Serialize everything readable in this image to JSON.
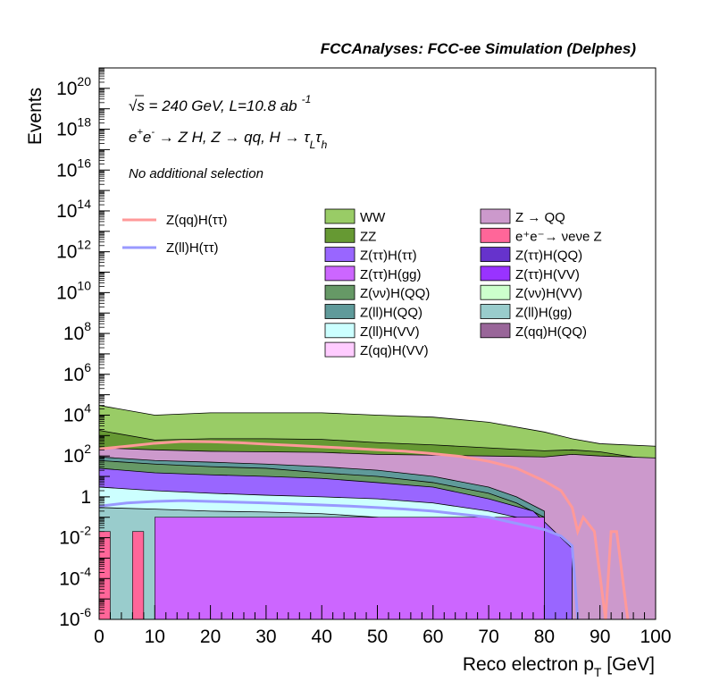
{
  "header": {
    "title": "FCCAnalyses: FCC-ee Simulation (Delphes)",
    "energy_label": "√s = 240 GeV, L=10.8 ab",
    "lumi_exponent": "-1",
    "process_parts": [
      "e",
      "+",
      "e",
      "-",
      " → Z H, Z  → qq, H  → ",
      "τ",
      "L",
      "τ",
      "h"
    ],
    "selection": "No additional selection"
  },
  "chart_data": {
    "type": "area",
    "xlabel": "Reco electron p",
    "xlabel_sub": "T",
    "xlabel_unit": " [GeV]",
    "ylabel": "Events",
    "xlim": [
      0,
      100
    ],
    "ylim": [
      1e-06,
      1e+21
    ],
    "ylog": true,
    "x_ticks": [
      "0",
      "10",
      "20",
      "30",
      "40",
      "50",
      "60",
      "70",
      "80",
      "90",
      "100"
    ],
    "y_ticks": [
      {
        "base": "10",
        "exp": "-6",
        "value": 1e-06
      },
      {
        "base": "10",
        "exp": "-4",
        "value": 0.0001
      },
      {
        "base": "10",
        "exp": "-2",
        "value": 0.01
      },
      {
        "base": "1",
        "exp": "",
        "value": 1
      },
      {
        "base": "10",
        "exp": "2",
        "value": 100.0
      },
      {
        "base": "10",
        "exp": "4",
        "value": 10000.0
      },
      {
        "base": "10",
        "exp": "6",
        "value": 1000000.0
      },
      {
        "base": "10",
        "exp": "8",
        "value": 100000000.0
      },
      {
        "base": "10",
        "exp": "10",
        "value": 10000000000.0
      },
      {
        "base": "10",
        "exp": "12",
        "value": 1000000000000.0
      },
      {
        "base": "10",
        "exp": "14",
        "value": 100000000000000.0
      },
      {
        "base": "10",
        "exp": "16",
        "value": 1e+16
      },
      {
        "base": "10",
        "exp": "18",
        "value": 1e+18
      },
      {
        "base": "10",
        "exp": "20",
        "value": 1e+20
      }
    ],
    "stacked_series": [
      {
        "name": "WW",
        "color": "#99cc66",
        "x": [
          0,
          10,
          20,
          30,
          40,
          50,
          60,
          70,
          80,
          85,
          90,
          100
        ],
        "y": [
          30000,
          10000,
          13000,
          13000,
          13000,
          10000,
          8000,
          4500,
          1500,
          700,
          400,
          300
        ]
      },
      {
        "name": "ZZ",
        "color": "#669933",
        "x": [
          0,
          10,
          20,
          30,
          40,
          50,
          60,
          70,
          80,
          85,
          90,
          100
        ],
        "y": [
          1800,
          600,
          700,
          700,
          650,
          450,
          350,
          250,
          180,
          200,
          160,
          60
        ]
      },
      {
        "name": "Z → QQ",
        "color": "#cc99cc",
        "x": [
          0,
          10,
          20,
          30,
          40,
          50,
          60,
          70,
          80,
          85,
          90,
          100
        ],
        "y": [
          250,
          200,
          170,
          160,
          150,
          120,
          110,
          100,
          90,
          120,
          100,
          80
        ]
      },
      {
        "name": "Z(ll)H(QQ)",
        "color": "#5f9a9a",
        "x": [
          0,
          10,
          20,
          30,
          40,
          50,
          60,
          70,
          75,
          80
        ],
        "y": [
          90,
          60,
          50,
          40,
          30,
          20,
          10,
          3,
          1,
          0.2
        ]
      },
      {
        "name": "Z(νν)H(QQ)",
        "color": "#669966",
        "x": [
          0,
          10,
          20,
          30,
          40,
          50,
          60,
          70,
          75,
          80
        ],
        "y": [
          60,
          40,
          30,
          25,
          15,
          10,
          5,
          1.5,
          0.5,
          0.1
        ]
      },
      {
        "name": "Z(ττ)H(ττ)",
        "color": "#9966ff",
        "x": [
          0,
          10,
          20,
          30,
          40,
          50,
          60,
          70,
          78,
          85
        ],
        "y": [
          25,
          15,
          12,
          10,
          8,
          5,
          3,
          0.8,
          0.2,
          0.003
        ]
      },
      {
        "name": "Z(ll)H(VV)",
        "color": "#ccffff",
        "x": [
          0,
          10,
          20,
          30,
          40,
          50,
          60,
          70,
          80
        ],
        "y": [
          3,
          2,
          1.5,
          1.2,
          1,
          0.8,
          0.5,
          0.2,
          0.05
        ]
      },
      {
        "name": "Z(ll)H(gg)",
        "color": "#99cccc",
        "x": [
          0,
          10,
          20,
          30,
          40,
          50,
          60,
          70,
          78
        ],
        "y": [
          0.3,
          0.25,
          0.2,
          0.18,
          0.15,
          0.1,
          0.06,
          0.02,
          0.008
        ]
      }
    ],
    "spike_bins": [
      {
        "name": "e⁺e⁻→ νeνe Z",
        "color": "#ff6699",
        "x": [
          0,
          2,
          6,
          8,
          18,
          20
        ],
        "y": [
          0.02,
          0.02,
          0.02,
          0.02,
          0.02,
          0.02
        ]
      },
      {
        "name": "Z(ττ)H(gg)",
        "color": "#cc66ff",
        "x": [
          10,
          80
        ],
        "y": [
          0.1,
          0.1
        ]
      }
    ],
    "lines": [
      {
        "name": "Z(qq)H(ττ)",
        "color": "#ff9999",
        "x": [
          0,
          5,
          10,
          15,
          20,
          25,
          30,
          35,
          40,
          45,
          50,
          55,
          60,
          65,
          70,
          75,
          80,
          83,
          85,
          86,
          87,
          89,
          91,
          92,
          93,
          95
        ],
        "y": [
          220,
          300,
          420,
          520,
          500,
          450,
          380,
          330,
          280,
          240,
          200,
          170,
          130,
          95,
          55,
          25,
          6,
          2,
          0.3,
          0.02,
          0.1,
          0.02,
          1e-06,
          0.02,
          0.02,
          1e-06
        ]
      },
      {
        "name": "Z(ll)H(ττ)",
        "color": "#9999ff",
        "x": [
          0,
          5,
          10,
          15,
          20,
          25,
          30,
          35,
          40,
          45,
          50,
          55,
          60,
          65,
          70,
          75,
          80,
          83,
          85,
          86
        ],
        "y": [
          0.35,
          0.5,
          0.6,
          0.65,
          0.6,
          0.55,
          0.5,
          0.45,
          0.4,
          0.35,
          0.3,
          0.25,
          0.2,
          0.14,
          0.1,
          0.05,
          0.025,
          0.012,
          0.004,
          1e-06
        ]
      }
    ],
    "legend_lines": [
      {
        "label": "Z(qq)H(ττ)",
        "color": "#ff9999"
      },
      {
        "label": "Z(ll)H(ττ)",
        "color": "#9999ff"
      }
    ],
    "legend_boxes": [
      {
        "label": "WW",
        "color": "#99cc66"
      },
      {
        "label": "Z → QQ",
        "color": "#cc99cc"
      },
      {
        "label": "ZZ",
        "color": "#669933"
      },
      {
        "label": "e⁺e⁻→ νeνe Z",
        "color": "#ff6699"
      },
      {
        "label": "Z(ττ)H(ττ)",
        "color": "#9966ff"
      },
      {
        "label": "Z(ττ)H(QQ)",
        "color": "#6633cc"
      },
      {
        "label": "Z(ττ)H(gg)",
        "color": "#cc66ff"
      },
      {
        "label": "Z(ττ)H(VV)",
        "color": "#9933ff"
      },
      {
        "label": "Z(νν)H(QQ)",
        "color": "#669966"
      },
      {
        "label": "Z(νν)H(VV)",
        "color": "#ccffcc"
      },
      {
        "label": "Z(ll)H(QQ)",
        "color": "#5f9a9a"
      },
      {
        "label": "Z(ll)H(gg)",
        "color": "#99cccc"
      },
      {
        "label": "Z(ll)H(VV)",
        "color": "#ccffff"
      },
      {
        "label": "Z(qq)H(QQ)",
        "color": "#996699"
      },
      {
        "label": "Z(qq)H(VV)",
        "color": "#ffccff"
      }
    ],
    "legend_placement": "top-right",
    "grid": false
  }
}
